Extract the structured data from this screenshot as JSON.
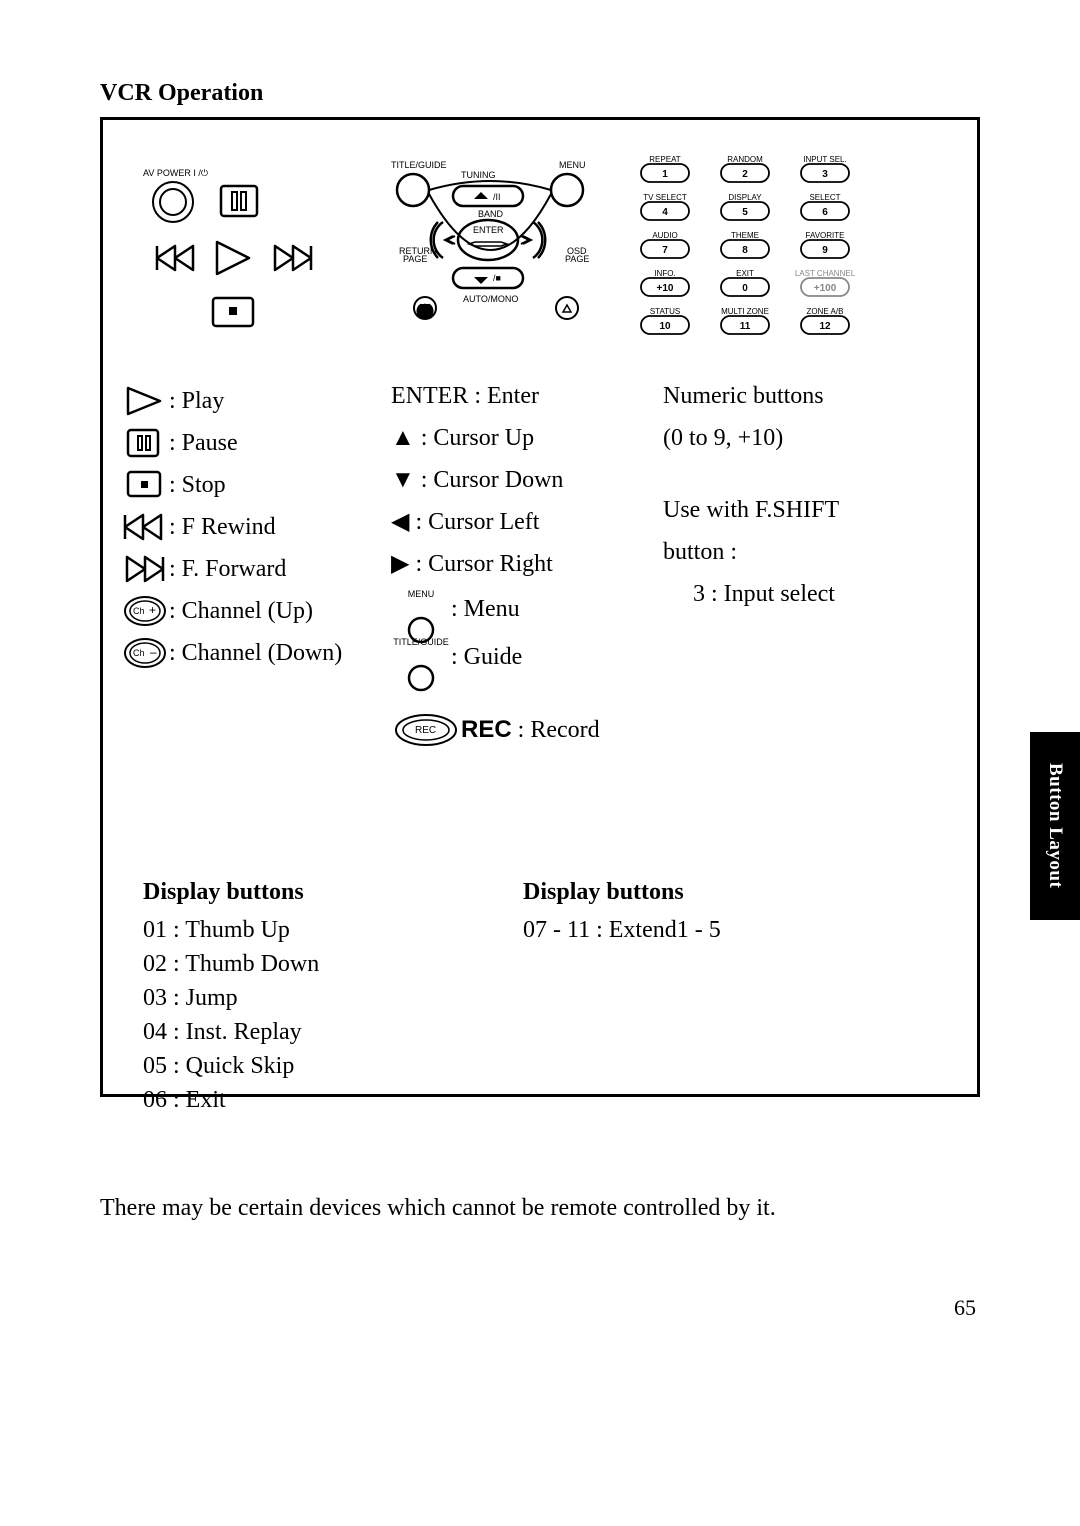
{
  "title": "VCR Operation",
  "sidetab": "Button Layout",
  "footnote": "There may be certain devices which cannot be remote controlled by it.",
  "page_number": "65",
  "col1": {
    "play": ": Play",
    "pause": ": Pause",
    "stop": " : Stop",
    "frew": " : F Rewind",
    "ffwd": " : F. Forward",
    "chup": " : Channel (Up)",
    "chdn": " : Channel (Down)"
  },
  "col2": {
    "enter": "ENTER : Enter",
    "up": "▲ : Cursor Up",
    "down": "▼ : Cursor Down",
    "left": "◀ : Cursor Left",
    "right": "▶ : Cursor Right",
    "menu": " :  Menu",
    "guide": " :  Guide",
    "rec1": "REC",
    "rec2": " : Record",
    "menu_lbl": "MENU",
    "guide_lbl": "TITLE/GUIDE"
  },
  "col3": {
    "l1": "Numeric buttons",
    "l2": "(0 to 9, +10)",
    "l3": "Use with F.SHIFT",
    "l4": "button :",
    "l5": "3 : Input select"
  },
  "display_left": {
    "hdr": "Display buttons",
    "items": [
      "01  : Thumb Up",
      "02  : Thumb Down",
      "03  : Jump",
      "04  : Inst. Replay",
      "05  : Quick Skip",
      "06  : Exit"
    ]
  },
  "display_right": {
    "hdr": "Display buttons",
    "items": [
      "07 - 11 : Extend1 - 5"
    ]
  },
  "diagram_labels": {
    "power": "AV POWER",
    "title_guide": "TITLE/GUIDE",
    "tuning": "TUNING",
    "menu": "MENU",
    "band": "BAND",
    "enter": "ENTER",
    "return_page": "RETURN\\nPAGE",
    "osd_page": "OSD\\nPAGE",
    "auto_mono": "AUTO/MONO",
    "keypad": [
      [
        "REPEAT",
        "RANDOM",
        "INPUT SEL."
      ],
      [
        "1",
        "2",
        "3"
      ],
      [
        "TV SELECT",
        "DISPLAY",
        "SELECT"
      ],
      [
        "4",
        "5",
        "6"
      ],
      [
        "AUDIO",
        "THEME",
        "FAVORITE"
      ],
      [
        "7",
        "8",
        "9"
      ],
      [
        "INFO.",
        "EXIT",
        "LAST CHANNEL"
      ],
      [
        "+10",
        "0",
        "+100"
      ],
      [
        "STATUS",
        "MULTI ZONE",
        "ZONE A/B"
      ],
      [
        "10",
        "11",
        "12"
      ]
    ]
  }
}
